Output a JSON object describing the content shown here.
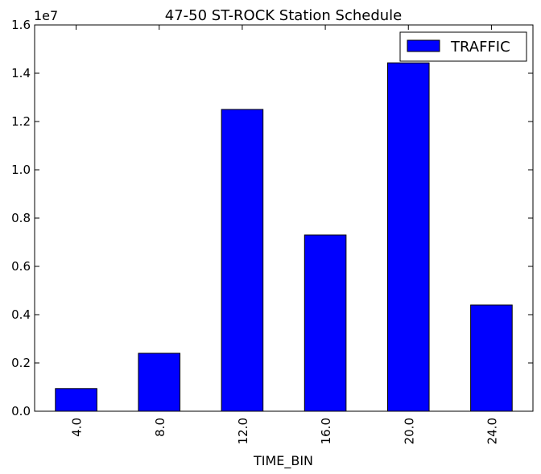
{
  "chart_data": {
    "type": "bar",
    "title": "47-50 ST-ROCK Station Schedule",
    "xlabel": "TIME_BIN",
    "ylabel": "",
    "offset_label": "1e7",
    "categories": [
      "4.0",
      "8.0",
      "12.0",
      "16.0",
      "20.0",
      "24.0"
    ],
    "series": [
      {
        "name": "TRAFFIC",
        "values": [
          940000,
          2400000,
          12500000,
          7300000,
          14430000,
          4400000
        ]
      }
    ],
    "ylim": [
      0,
      16000000
    ],
    "yticks": [
      0,
      2000000,
      4000000,
      6000000,
      8000000,
      10000000,
      12000000,
      14000000,
      16000000
    ],
    "ytick_labels": [
      "0.0",
      "0.2",
      "0.4",
      "0.6",
      "0.8",
      "1.0",
      "1.2",
      "1.4",
      "1.6"
    ],
    "grid": false,
    "legend_position": "top-right",
    "colors": {
      "bar_fill": "#0000ff",
      "bar_edge": "#000000",
      "axis": "#000000",
      "background": "#ffffff"
    }
  }
}
